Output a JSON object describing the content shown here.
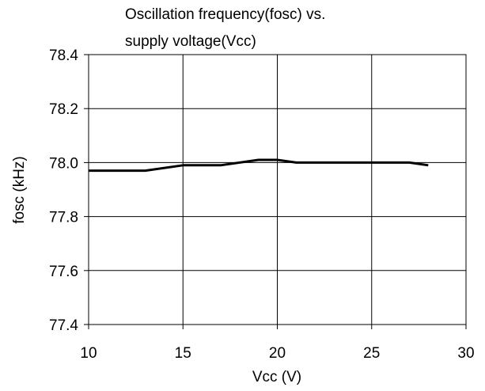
{
  "chart_data": {
    "type": "line",
    "title_lines": [
      "Oscillation frequency(fosc) vs.",
      "supply voltage(Vcc)"
    ],
    "xlabel": "Vcc (V)",
    "ylabel": "fosc (kHz)",
    "xlim": [
      10,
      30
    ],
    "ylim": [
      77.4,
      78.4
    ],
    "x_ticks": [
      10,
      15,
      20,
      25,
      30
    ],
    "x_tick_labels": [
      "10",
      "15",
      "20",
      "25",
      "30"
    ],
    "y_ticks": [
      77.4,
      77.6,
      77.8,
      78.0,
      78.2,
      78.4
    ],
    "y_tick_labels": [
      "77.4",
      "77.6",
      "77.8",
      "78.0",
      "78.2",
      "78.4"
    ],
    "grid": true,
    "series": [
      {
        "x": [
          10,
          13,
          15,
          17,
          19,
          20,
          21,
          27,
          28
        ],
        "y": [
          77.97,
          77.97,
          77.99,
          77.99,
          78.01,
          78.01,
          78.0,
          78.0,
          77.99
        ]
      }
    ],
    "colors": {
      "line": "#000000",
      "grid": "#000000",
      "background": "#ffffff"
    }
  }
}
